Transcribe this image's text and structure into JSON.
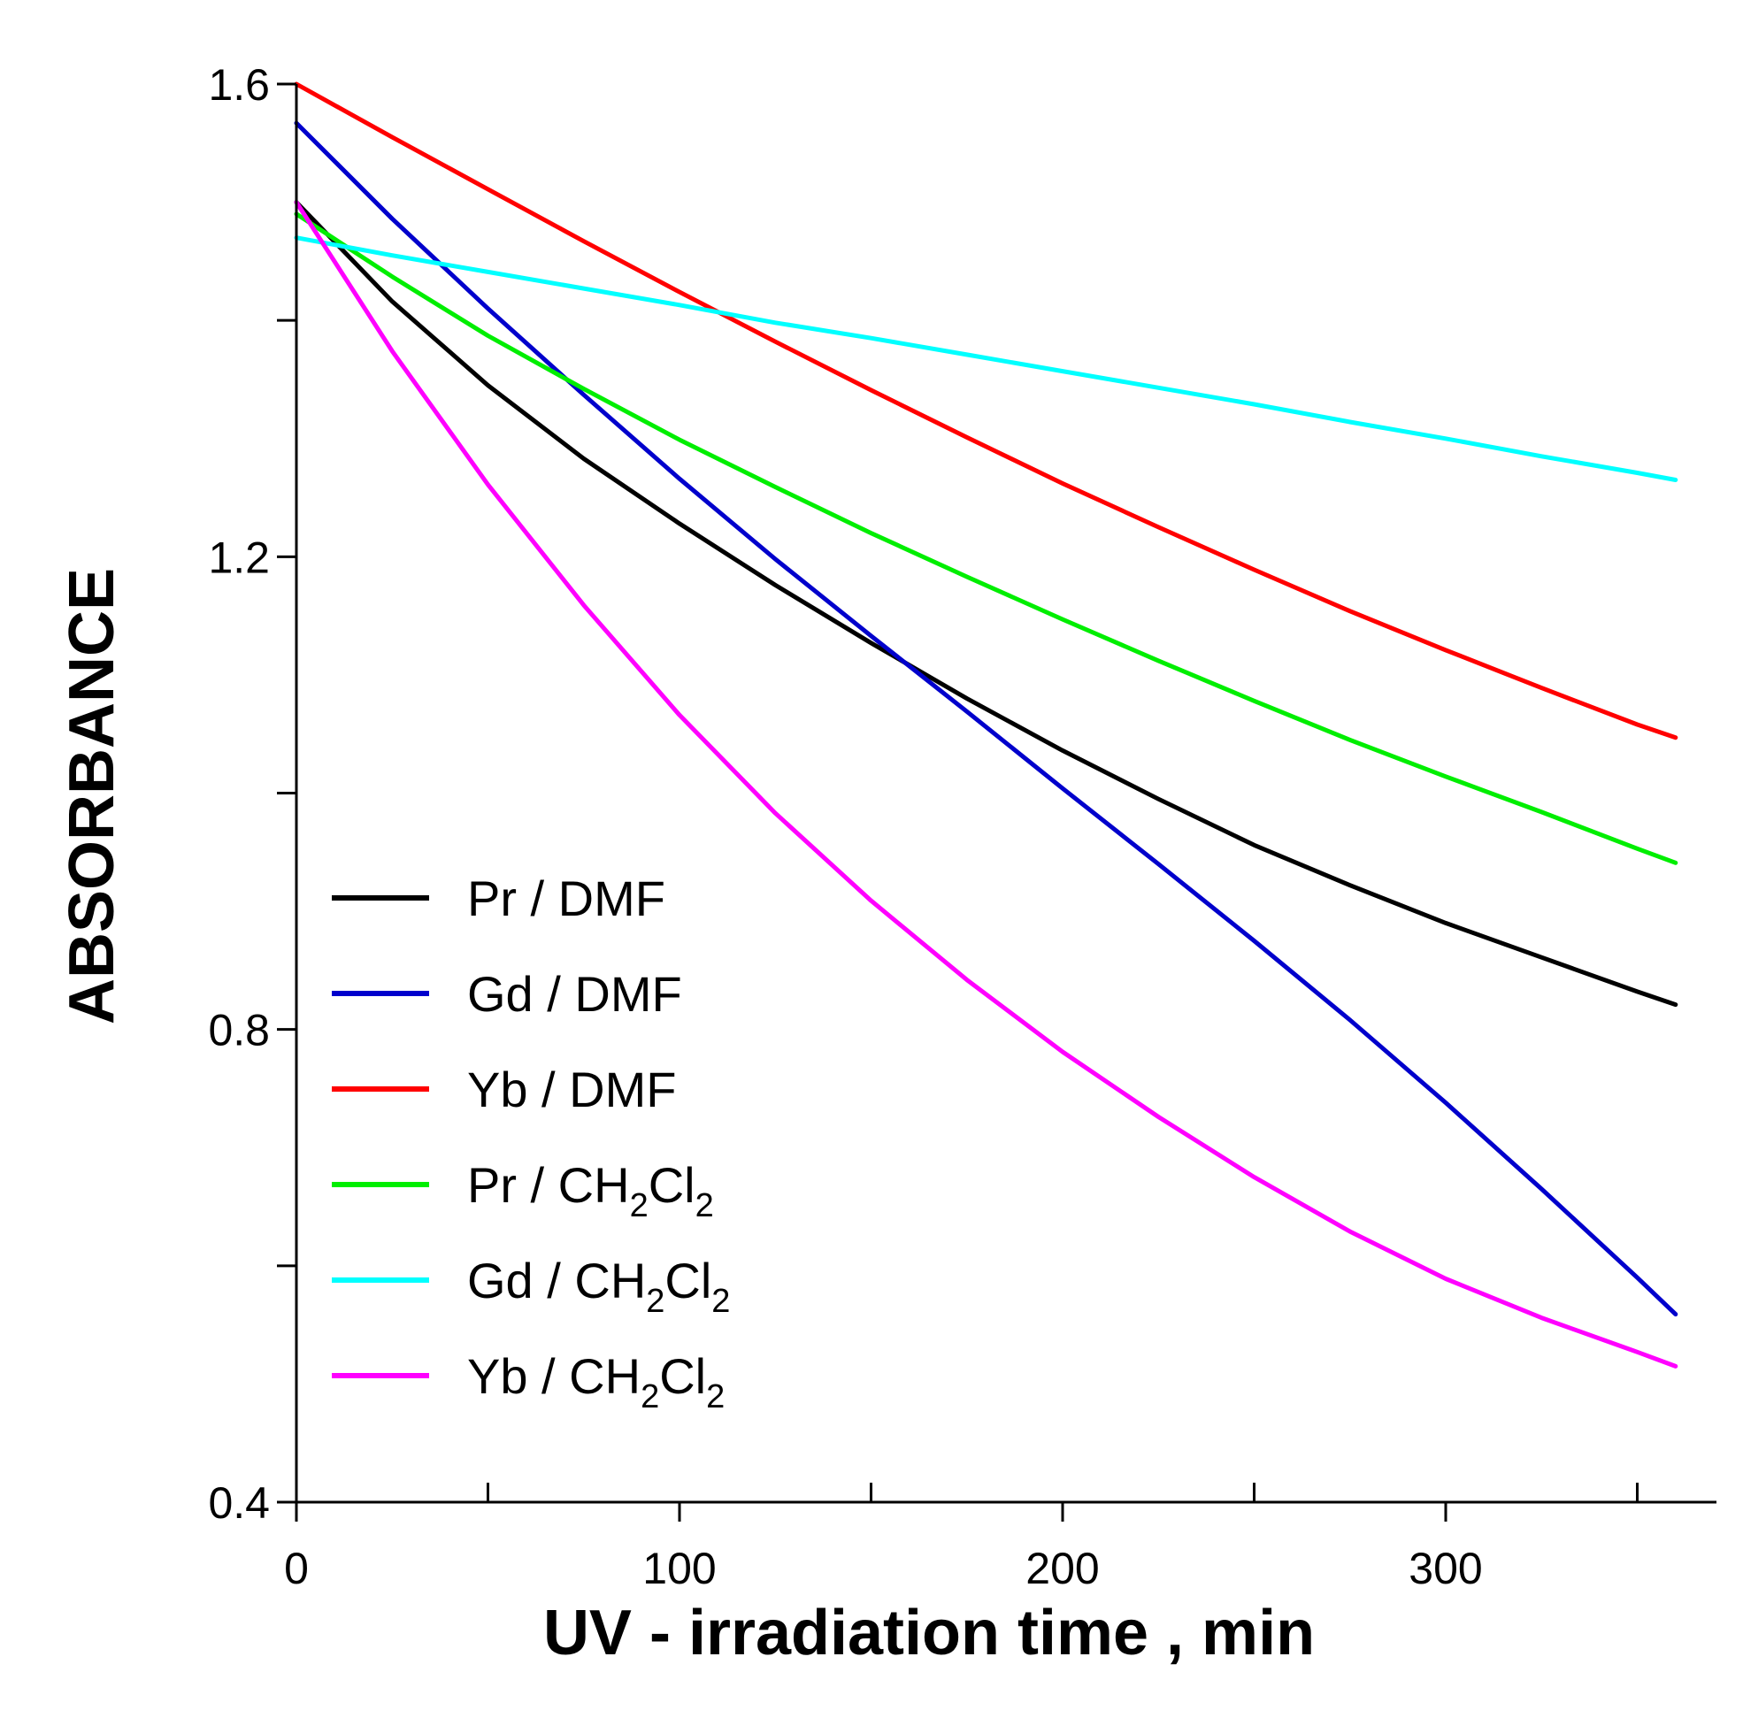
{
  "chart_data": {
    "type": "line",
    "xlabel": "UV - irradiation time , min",
    "ylabel": "ABSORBANCE",
    "xlim": [
      0,
      370
    ],
    "ylim": [
      0.4,
      1.6
    ],
    "x_ticks": [
      0,
      100,
      200,
      300
    ],
    "x_ticks_minor": [
      50,
      150,
      250,
      350
    ],
    "y_ticks": [
      0.4,
      0.8,
      1.2,
      1.6
    ],
    "y_ticks_minor": [
      0.6,
      1.0,
      1.4
    ],
    "x_tick_labels": [
      "0",
      "100",
      "200",
      "300"
    ],
    "y_tick_labels": [
      "0.4",
      "0.8",
      "1.2",
      "1.6"
    ],
    "grid": false,
    "legend_position": "lower-left",
    "series": [
      {
        "name": "Pr / DMF",
        "legend_main": "Pr / DMF",
        "legend_sub1": "",
        "legend_mid": "",
        "legend_sub2": "",
        "color": "#000000",
        "x": [
          0,
          25,
          50,
          75,
          100,
          125,
          150,
          175,
          200,
          225,
          250,
          275,
          300,
          325,
          350,
          360
        ],
        "y": [
          1.5,
          1.416,
          1.345,
          1.283,
          1.228,
          1.176,
          1.127,
          1.08,
          1.036,
          0.995,
          0.956,
          0.922,
          0.89,
          0.861,
          0.832,
          0.821
        ]
      },
      {
        "name": "Gd / DMF",
        "legend_main": "Gd / DMF",
        "legend_sub1": "",
        "legend_mid": "",
        "legend_sub2": "",
        "color": "#0000cc",
        "x": [
          0,
          25,
          50,
          75,
          100,
          125,
          150,
          175,
          200,
          225,
          250,
          275,
          300,
          325,
          350,
          360
        ],
        "y": [
          1.567,
          1.486,
          1.41,
          1.337,
          1.266,
          1.198,
          1.133,
          1.069,
          1.004,
          0.94,
          0.875,
          0.808,
          0.738,
          0.665,
          0.59,
          0.559
        ]
      },
      {
        "name": "Yb / DMF",
        "legend_main": "Yb / DMF",
        "legend_sub1": "",
        "legend_mid": "",
        "legend_sub2": "",
        "color": "#ff0000",
        "x": [
          0,
          25,
          50,
          75,
          100,
          125,
          150,
          175,
          200,
          225,
          250,
          275,
          300,
          325,
          350,
          360
        ],
        "y": [
          1.6,
          1.555,
          1.511,
          1.467,
          1.424,
          1.382,
          1.341,
          1.301,
          1.262,
          1.225,
          1.189,
          1.154,
          1.121,
          1.089,
          1.058,
          1.047
        ]
      },
      {
        "name": "Pr / CH2Cl2",
        "legend_main": "Pr / CH",
        "legend_sub1": "2",
        "legend_mid": "Cl",
        "legend_sub2": "2",
        "color": "#00ee00",
        "x": [
          0,
          25,
          50,
          75,
          100,
          125,
          150,
          175,
          200,
          225,
          250,
          275,
          300,
          325,
          350,
          360
        ],
        "y": [
          1.49,
          1.437,
          1.387,
          1.342,
          1.299,
          1.259,
          1.22,
          1.183,
          1.147,
          1.112,
          1.078,
          1.045,
          1.014,
          0.984,
          0.953,
          0.941
        ]
      },
      {
        "name": "Gd / CH2Cl2",
        "legend_main": "Gd / CH",
        "legend_sub1": "2",
        "legend_mid": "Cl",
        "legend_sub2": "2",
        "color": "#00ffff",
        "x": [
          0,
          25,
          50,
          75,
          100,
          125,
          150,
          175,
          200,
          225,
          250,
          275,
          300,
          325,
          350,
          360
        ],
        "y": [
          1.47,
          1.455,
          1.441,
          1.427,
          1.413,
          1.398,
          1.385,
          1.371,
          1.357,
          1.343,
          1.329,
          1.314,
          1.3,
          1.285,
          1.271,
          1.265
        ]
      },
      {
        "name": "Yb / CH2Cl2",
        "legend_main": "Yb / CH",
        "legend_sub1": "2",
        "legend_mid": "Cl",
        "legend_sub2": "2",
        "color": "#ff00ff",
        "x": [
          0,
          25,
          50,
          75,
          100,
          125,
          150,
          175,
          200,
          225,
          250,
          275,
          300,
          325,
          350,
          360
        ],
        "y": [
          1.5,
          1.374,
          1.261,
          1.159,
          1.066,
          0.983,
          0.909,
          0.842,
          0.781,
          0.726,
          0.675,
          0.629,
          0.589,
          0.556,
          0.527,
          0.515
        ]
      }
    ]
  }
}
